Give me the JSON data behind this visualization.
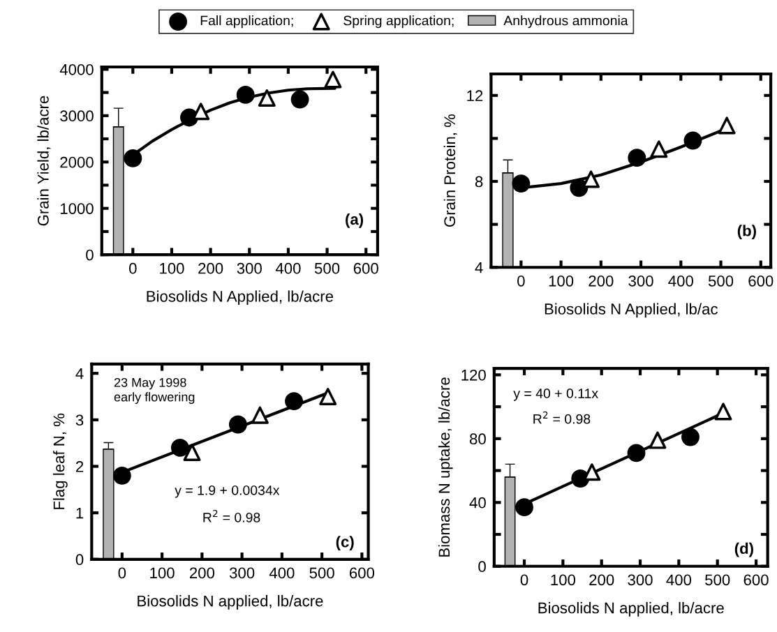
{
  "chart_data": [
    {
      "type": "scatter",
      "ylabel": "Grain Yield, lb/acre",
      "xlabel": "Biosolids N Applied, lb/acre",
      "legend": "top",
      "grid": false,
      "xlim": [
        -80,
        630
      ],
      "xticks": [
        0,
        100,
        200,
        300,
        400,
        500,
        600
      ],
      "ylim": [
        0,
        4050
      ],
      "yticks": [
        0,
        {
          "value": 500,
          "label": null
        },
        1000,
        {
          "value": 1500,
          "label": null
        },
        2000,
        {
          "value": 2500,
          "label": null
        },
        3000,
        {
          "value": 3500,
          "label": null
        },
        4000
      ],
      "annotations": [
        "(a)"
      ],
      "series": [
        {
          "name": "Fall application;",
          "color": "#000000",
          "marker": "circle",
          "x": [
            0,
            145,
            290,
            430
          ],
          "values": [
            2080,
            2960,
            3450,
            3350
          ]
        },
        {
          "name": "Spring application;",
          "color": "#000000",
          "marker": "triangle",
          "x": [
            175,
            345,
            515
          ],
          "values": [
            3090,
            3380,
            3780
          ]
        },
        {
          "type": "bar",
          "name": "Anhydrous ammonia",
          "color": "#b3b3b3",
          "x": [
            -37
          ],
          "values": [
            2760
          ],
          "errors": [
            [
              2760,
              3160
            ]
          ]
        },
        {
          "type": "line",
          "color": "#000000",
          "marker": "none",
          "x": [
            0,
            50,
            100,
            150,
            200,
            250,
            300,
            350,
            400,
            450,
            520
          ],
          "values": [
            2150,
            2450,
            2700,
            2920,
            3120,
            3280,
            3400,
            3490,
            3550,
            3580,
            3590
          ]
        }
      ]
    },
    {
      "type": "scatter",
      "ylabel": "Grain Protein, %",
      "xlabel": "Biosolids N Applied, lb/ac",
      "grid": false,
      "xlim": [
        -75,
        625
      ],
      "xticks": [
        0,
        100,
        200,
        300,
        400,
        500,
        600
      ],
      "ylim": [
        4,
        13
      ],
      "yticks": [
        4,
        {
          "value": 6,
          "label": null
        },
        8,
        {
          "value": 10,
          "label": null
        },
        12
      ],
      "annotations": [
        "(b)"
      ],
      "series": [
        {
          "color": "#000000",
          "marker": "circle",
          "x": [
            0,
            145,
            290,
            430
          ],
          "values": [
            7.9,
            7.7,
            9.1,
            9.9
          ]
        },
        {
          "color": "#000000",
          "marker": "triangle",
          "x": [
            175,
            345,
            515
          ],
          "values": [
            8.1,
            9.5,
            10.6
          ]
        },
        {
          "type": "bar",
          "color": "#b3b3b3",
          "x": [
            -33
          ],
          "values": [
            8.4
          ],
          "errors": [
            [
              8.4,
              9.0
            ]
          ]
        },
        {
          "type": "line",
          "color": "#000000",
          "marker": "none",
          "x": [
            0,
            100,
            200,
            300,
            400,
            520
          ],
          "values": [
            7.7,
            7.9,
            8.3,
            8.9,
            9.6,
            10.5
          ]
        }
      ]
    },
    {
      "type": "scatter",
      "ylabel": "Flag leaf N, %",
      "xlabel": "Biosolids N applied, lb/acre",
      "grid": false,
      "xlim": [
        -76,
        616
      ],
      "xticks": [
        0,
        100,
        200,
        300,
        400,
        500,
        600
      ],
      "ylim": [
        0,
        4.2
      ],
      "yticks": [
        0,
        1,
        2,
        3,
        4
      ],
      "annotations": [
        "23 May 1998\nearly flowering",
        "y = 1.9 + 0.0034x",
        "R$^{2}$ = 0.98",
        "(c)"
      ],
      "series": [
        {
          "color": "#000000",
          "marker": "circle",
          "x": [
            0,
            145,
            290,
            430
          ],
          "values": [
            1.8,
            2.4,
            2.9,
            3.4
          ]
        },
        {
          "color": "#000000",
          "marker": "triangle",
          "x": [
            175,
            345,
            515
          ],
          "values": [
            2.3,
            3.1,
            3.5
          ]
        },
        {
          "type": "bar",
          "color": "#b3b3b3",
          "x": [
            -34
          ],
          "values": [
            2.37
          ],
          "errors": [
            [
              2.37,
              2.51
            ]
          ]
        },
        {
          "type": "line",
          "color": "#000000",
          "marker": "none",
          "x": [
            0,
            515
          ],
          "values": [
            1.87,
            3.58
          ]
        }
      ]
    },
    {
      "type": "scatter",
      "ylabel": "Biomass N uptake, lb/acre",
      "xlabel": "Biosolids N applied, lb/acre",
      "grid": false,
      "xlim": [
        -78,
        630
      ],
      "xticks": [
        0,
        100,
        200,
        300,
        400,
        500,
        600
      ],
      "ylim": [
        0,
        124
      ],
      "yticks": [
        0,
        {
          "value": 20,
          "label": null
        },
        40,
        {
          "value": 60,
          "label": null
        },
        80,
        {
          "value": 100,
          "label": null
        },
        120
      ],
      "annotations": [
        "y = 40 + 0.11x",
        "R$^{2}$ = 0.98",
        "(d)"
      ],
      "series": [
        {
          "color": "#000000",
          "marker": "circle",
          "x": [
            0,
            145,
            290,
            430
          ],
          "values": [
            37,
            55,
            71,
            81
          ]
        },
        {
          "color": "#000000",
          "marker": "triangle",
          "x": [
            175,
            345,
            515
          ],
          "values": [
            59,
            79,
            97
          ]
        },
        {
          "type": "bar",
          "color": "#b3b3b3",
          "x": [
            -37
          ],
          "values": [
            56
          ],
          "errors": [
            [
              56,
              64
            ]
          ]
        },
        {
          "type": "line",
          "color": "#000000",
          "marker": "none",
          "x": [
            0,
            515
          ],
          "values": [
            39,
            96
          ]
        }
      ]
    }
  ]
}
